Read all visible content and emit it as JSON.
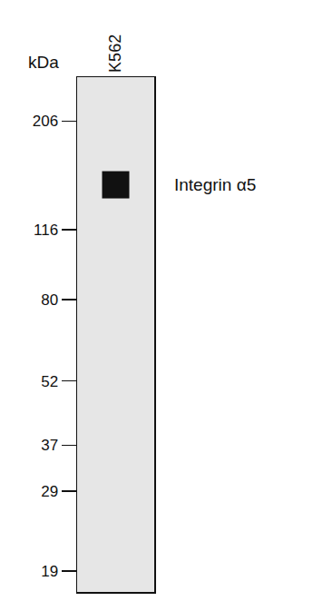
{
  "chart_data": {
    "type": "blot",
    "ylabel": "kDa",
    "categories": [
      "K562"
    ],
    "series": [
      {
        "name": "Integrin α5",
        "values": [
          147
        ],
        "color": "#111111"
      }
    ],
    "log": "y",
    "ylim": [
      17,
      260
    ],
    "yticks": [
      206,
      116,
      80,
      52,
      37,
      29,
      19
    ],
    "grid": false
  }
}
